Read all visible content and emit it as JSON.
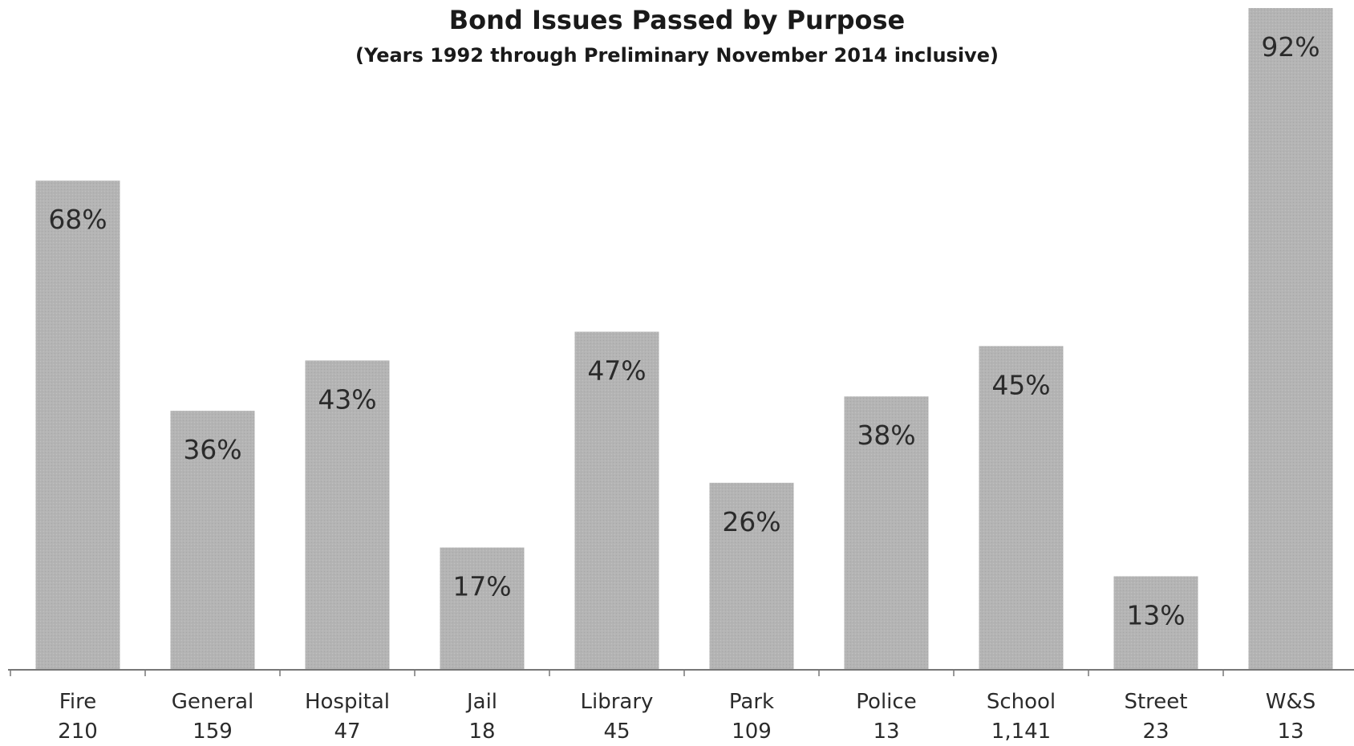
{
  "chart_data": {
    "type": "bar",
    "title": "Bond Issues Passed by Purpose",
    "subtitle": "(Years 1992 through Preliminary November 2014 inclusive)",
    "categories": [
      "Fire",
      "General",
      "Hospital",
      "Jail",
      "Library",
      "Park",
      "Police",
      "School",
      "Street",
      "W&S"
    ],
    "counts": [
      "210",
      "159",
      "47",
      "18",
      "45",
      "109",
      "13",
      "1,141",
      "23",
      "13"
    ],
    "values": [
      68,
      36,
      43,
      17,
      47,
      26,
      38,
      45,
      13,
      92
    ],
    "value_labels": [
      "68%",
      "36%",
      "43%",
      "17%",
      "47%",
      "26%",
      "38%",
      "45%",
      "13%",
      "92%"
    ],
    "ylim": [
      0,
      92
    ],
    "grid": false,
    "legend": "none",
    "bar_color": "#b4b4b4",
    "axis_color": "#777777"
  }
}
